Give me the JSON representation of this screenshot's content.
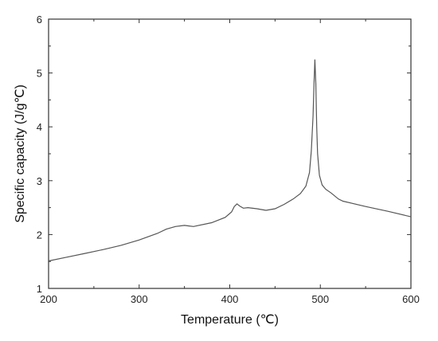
{
  "chart_data": {
    "type": "line",
    "title": "",
    "xlabel": "Temperature (℃)",
    "ylabel": "Specific capacity (J/g℃)",
    "xlim": [
      200,
      600
    ],
    "ylim": [
      1,
      6
    ],
    "x_ticks": [
      200,
      300,
      400,
      500,
      600
    ],
    "y_ticks": [
      1,
      2,
      3,
      4,
      5,
      6
    ],
    "x_tick_labels": [
      "200",
      "300",
      "400",
      "500",
      "600"
    ],
    "y_tick_labels": [
      "1",
      "2",
      "3",
      "4",
      "5",
      "6"
    ],
    "grid": false,
    "legend": "none",
    "line_color": "#555555",
    "series": [
      {
        "x": [
          200,
          220,
          240,
          260,
          280,
          300,
          320,
          330,
          340,
          350,
          355,
          360,
          380,
          395,
          402,
          405,
          408,
          411,
          415,
          420,
          430,
          440,
          450,
          460,
          470,
          478,
          484,
          488,
          490,
          492,
          493,
          494,
          495,
          496,
          497,
          499,
          502,
          506,
          512,
          520,
          525,
          550,
          575,
          600
        ],
        "y": [
          1.51,
          1.58,
          1.65,
          1.72,
          1.8,
          1.9,
          2.02,
          2.1,
          2.15,
          2.17,
          2.16,
          2.15,
          2.22,
          2.32,
          2.42,
          2.52,
          2.57,
          2.53,
          2.49,
          2.5,
          2.48,
          2.45,
          2.48,
          2.56,
          2.66,
          2.76,
          2.9,
          3.15,
          3.55,
          4.2,
          4.8,
          5.25,
          4.8,
          4.0,
          3.5,
          3.1,
          2.92,
          2.84,
          2.77,
          2.66,
          2.62,
          2.52,
          2.43,
          2.33
        ]
      }
    ]
  }
}
